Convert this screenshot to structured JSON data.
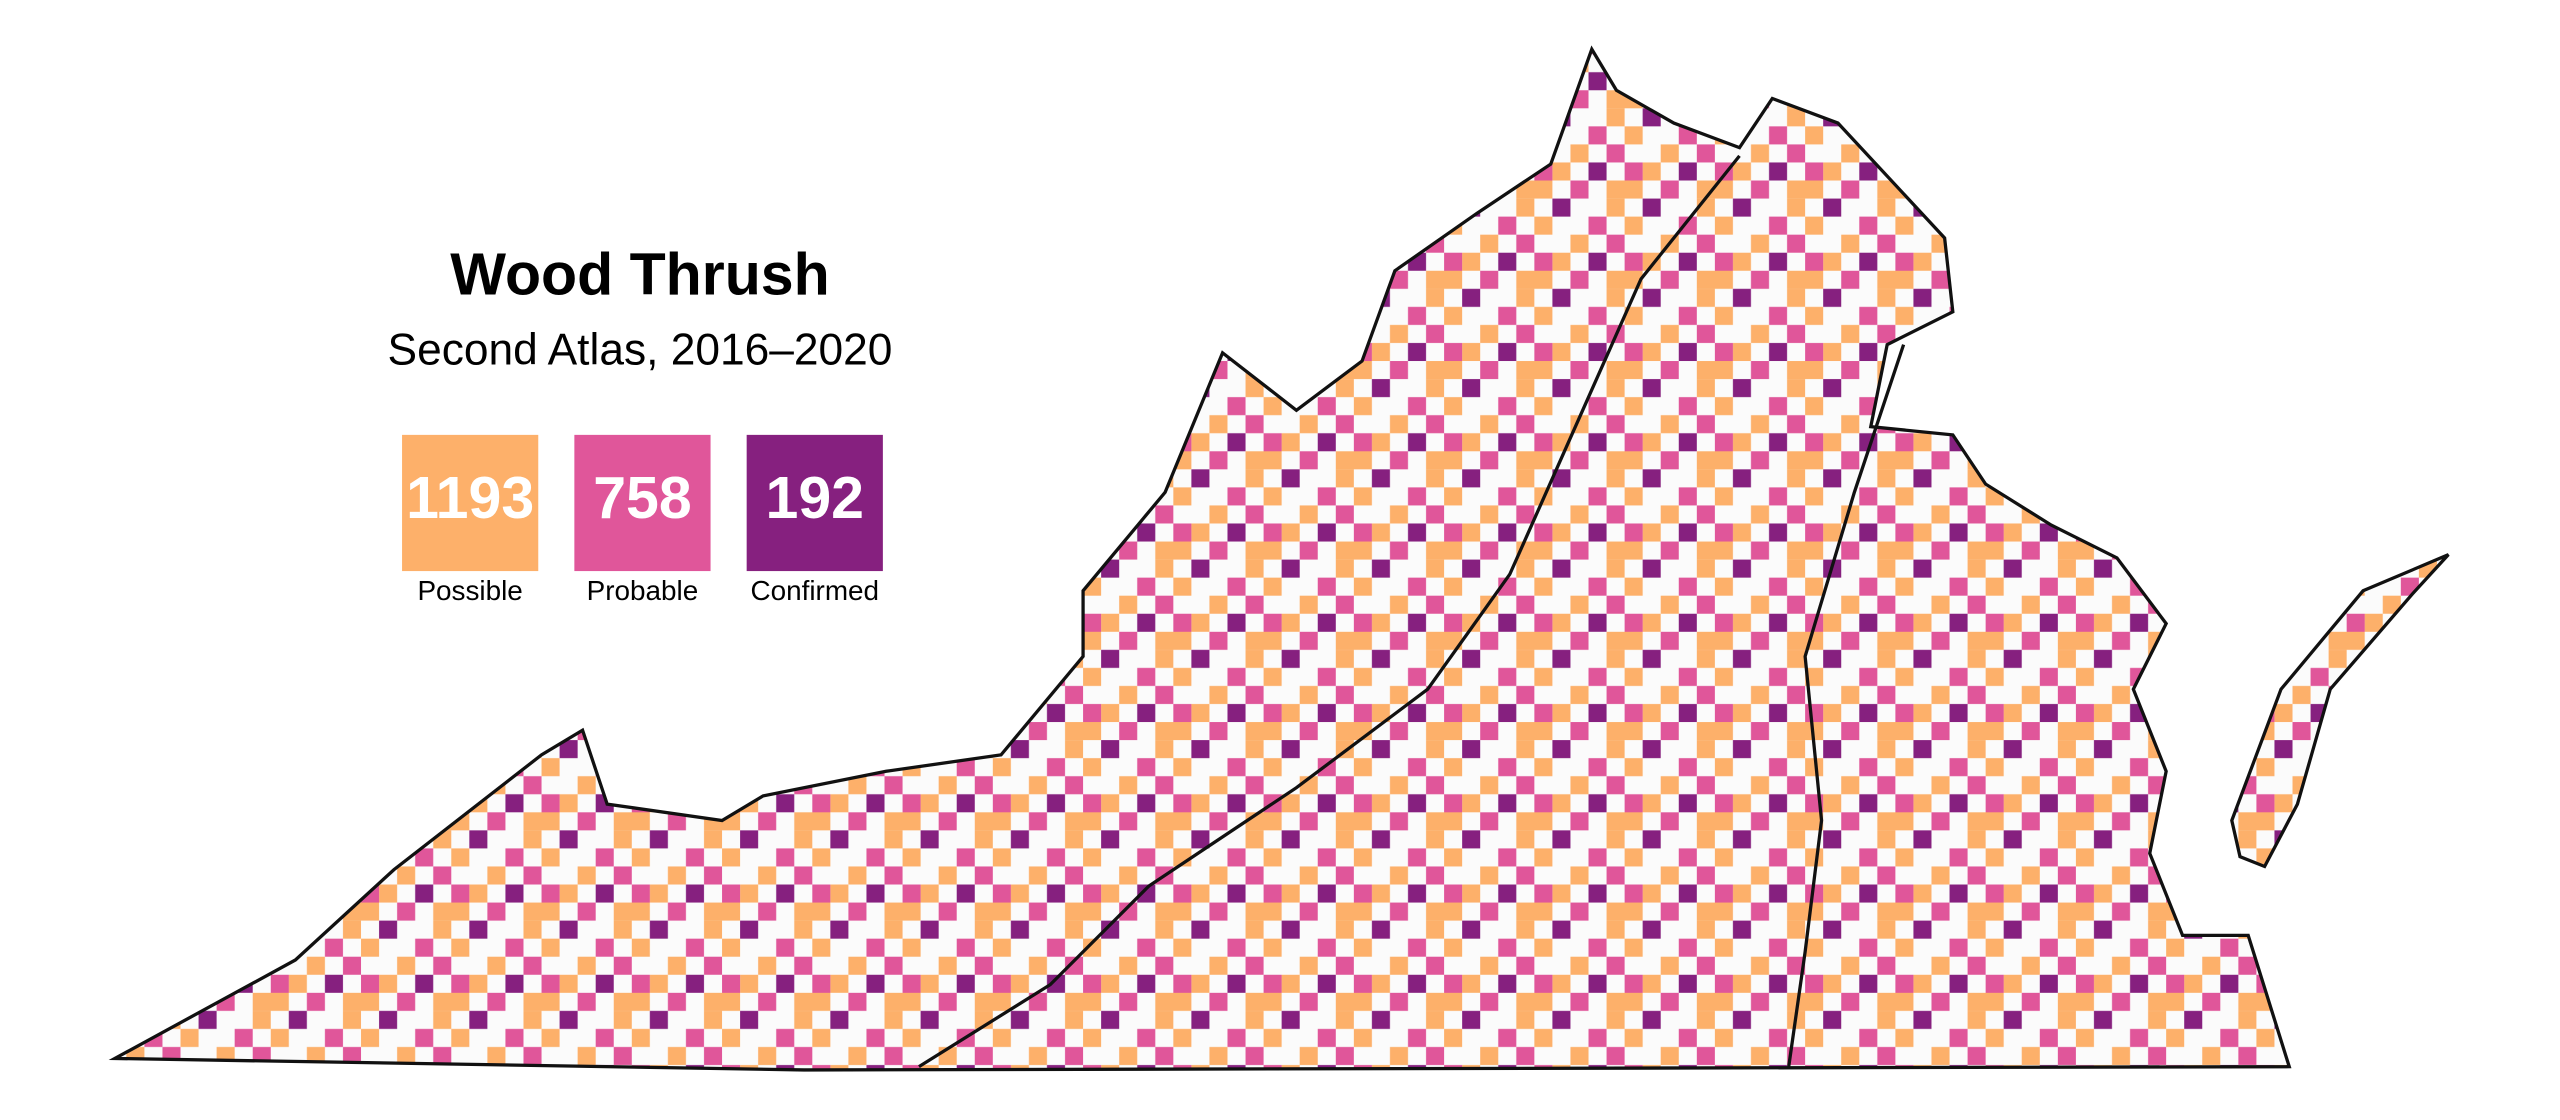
{
  "header": {
    "title": "Wood Thrush",
    "subtitle": "Second Atlas, 2016–2020"
  },
  "legend": [
    {
      "count": 1193,
      "label": "Possible",
      "color": "#fdb06a"
    },
    {
      "count": 758,
      "label": "Probable",
      "color": "#e0569a"
    },
    {
      "count": 192,
      "label": "Confirmed",
      "color": "#86207f"
    }
  ]
}
